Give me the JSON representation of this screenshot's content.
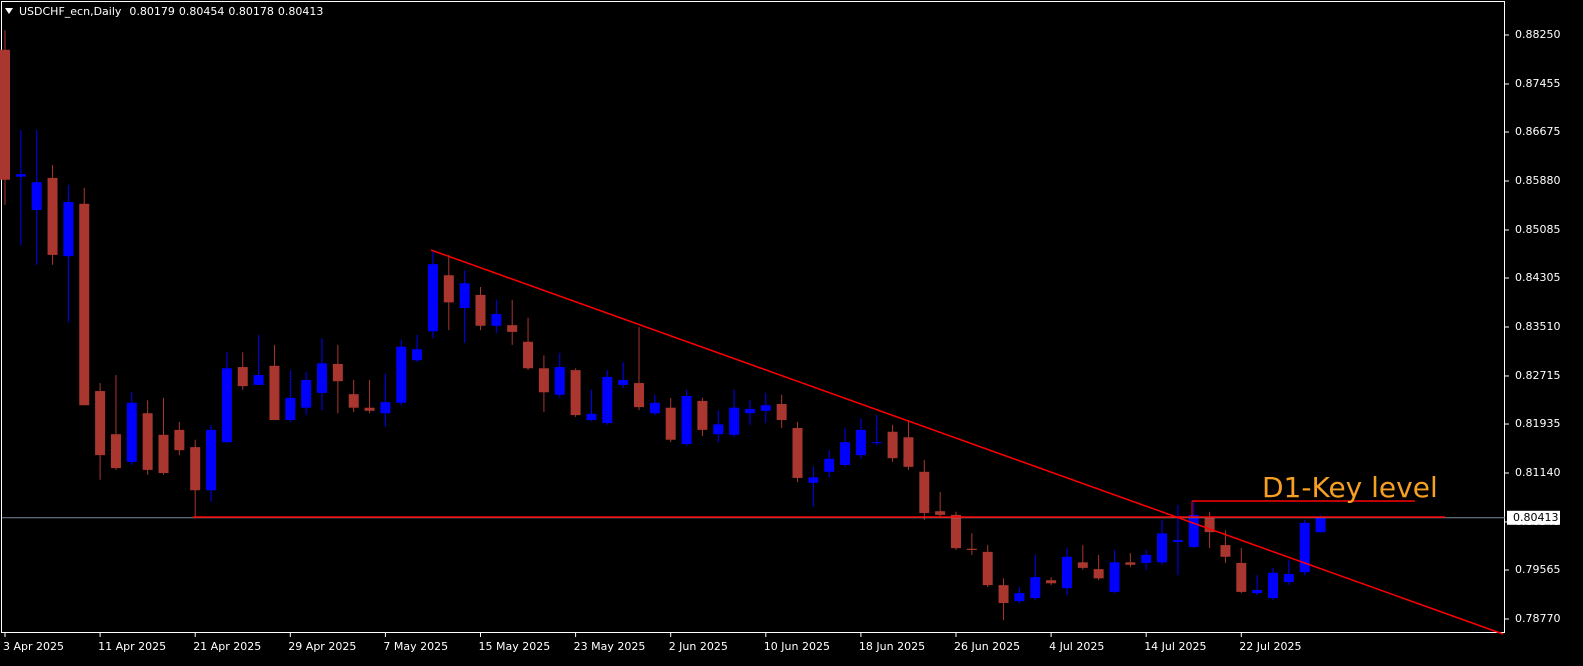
{
  "chart_data": {
    "type": "candlestick",
    "title": "USDCHF_ecn,Daily",
    "up_color": "#0000ff",
    "down_color": "#a9372f",
    "ylim": [
      0.78559,
      0.88818
    ],
    "yticks": [
      {
        "value": 0.8825,
        "label": "0.88250"
      },
      {
        "value": 0.87455,
        "label": "0.87455"
      },
      {
        "value": 0.86675,
        "label": "0.86675"
      },
      {
        "value": 0.8588,
        "label": "0.85880"
      },
      {
        "value": 0.85085,
        "label": "0.85085"
      },
      {
        "value": 0.84305,
        "label": "0.84305"
      },
      {
        "value": 0.8351,
        "label": "0.83510"
      },
      {
        "value": 0.82715,
        "label": "0.82715"
      },
      {
        "value": 0.81935,
        "label": "0.81935"
      },
      {
        "value": 0.8114,
        "label": "0.81140"
      },
      {
        "value": 0.80345,
        "label": "0.80345"
      },
      {
        "value": 0.79565,
        "label": "0.79565"
      },
      {
        "value": 0.7877,
        "label": "0.78770"
      }
    ],
    "categories": [
      "3 Apr 2025",
      null,
      null,
      null,
      null,
      null,
      "11 Apr 2025",
      null,
      null,
      null,
      null,
      null,
      "21 Apr 2025",
      null,
      null,
      null,
      null,
      null,
      "29 Apr 2025",
      null,
      null,
      null,
      null,
      null,
      "7 May 2025",
      null,
      null,
      null,
      null,
      null,
      "15 May 2025",
      null,
      null,
      null,
      null,
      null,
      "23 May 2025",
      null,
      null,
      null,
      null,
      null,
      "2 Jun 2025",
      null,
      null,
      null,
      null,
      null,
      "10 Jun 2025",
      null,
      null,
      null,
      null,
      null,
      "18 Jun 2025",
      null,
      null,
      null,
      null,
      null,
      "26 Jun 2025",
      null,
      null,
      null,
      null,
      null,
      "4 Jul 2025",
      null,
      null,
      null,
      null,
      null,
      "14 Jul 2025",
      null,
      null,
      null,
      null,
      null,
      "22 Jul 2025",
      null,
      null,
      null,
      null,
      null
    ],
    "open": [
      0.8801,
      0.8595,
      0.8541,
      0.8593,
      0.8466,
      0.8551,
      0.8247,
      0.8177,
      0.8132,
      0.8211,
      0.8176,
      0.8184,
      0.8156,
      0.8086,
      0.8164,
      0.8286,
      0.8257,
      0.8288,
      0.82,
      0.822,
      0.8244,
      0.8291,
      0.8242,
      0.822,
      0.8211,
      0.8228,
      0.8297,
      0.8344,
      0.8435,
      0.8382,
      0.8403,
      0.8353,
      0.8354,
      0.8327,
      0.8284,
      0.8241,
      0.8281,
      0.82,
      0.8195,
      0.8257,
      0.826,
      0.8211,
      0.822,
      0.8161,
      0.8231,
      0.8177,
      0.8176,
      0.8211,
      0.8215,
      0.8226,
      0.8187,
      0.8098,
      0.8116,
      0.8127,
      0.8143,
      0.8163,
      0.8181,
      0.8172,
      0.8116,
      0.8052,
      0.8046,
      0.7991,
      0.7986,
      0.7932,
      0.7906,
      0.7911,
      0.794,
      0.7927,
      0.7969,
      0.7958,
      0.7921,
      0.7969,
      0.7968,
      0.7969,
      0.8002,
      0.7994,
      0.8043,
      0.7997,
      0.7968,
      0.7919,
      0.7911,
      0.7937,
      0.7953,
      0.80179
    ],
    "high": [
      0.8833,
      0.8671,
      0.8671,
      0.8614,
      0.8582,
      0.8577,
      0.826,
      0.8273,
      0.8245,
      0.8232,
      0.8236,
      0.8197,
      0.8168,
      0.8192,
      0.831,
      0.831,
      0.8338,
      0.8322,
      0.8281,
      0.8278,
      0.8333,
      0.8322,
      0.8265,
      0.8265,
      0.8275,
      0.833,
      0.8338,
      0.8473,
      0.8468,
      0.8443,
      0.8416,
      0.8395,
      0.8395,
      0.8366,
      0.8305,
      0.8309,
      0.8284,
      0.8249,
      0.8281,
      0.8294,
      0.8351,
      0.8241,
      0.8236,
      0.8249,
      0.8236,
      0.8216,
      0.8249,
      0.8232,
      0.8244,
      0.8241,
      0.8197,
      0.8125,
      0.8151,
      0.8187,
      0.8203,
      0.8208,
      0.8192,
      0.82,
      0.8135,
      0.8083,
      0.8051,
      0.8016,
      0.7997,
      0.7943,
      0.7929,
      0.7981,
      0.7945,
      0.7992,
      0.7997,
      0.7981,
      0.7989,
      0.7984,
      0.7989,
      0.8038,
      0.8062,
      0.807,
      0.8051,
      0.8021,
      0.7992,
      0.7948,
      0.796,
      0.7973,
      0.8038,
      0.80454
    ],
    "low": [
      0.8549,
      0.8484,
      0.8452,
      0.8452,
      0.8359,
      0.8224,
      0.8103,
      0.8119,
      0.8127,
      0.8111,
      0.8111,
      0.8143,
      0.8043,
      0.8067,
      0.8163,
      0.8249,
      0.8257,
      0.82,
      0.8197,
      0.8208,
      0.8216,
      0.8211,
      0.8213,
      0.8211,
      0.8189,
      0.8224,
      0.8294,
      0.8333,
      0.8346,
      0.8325,
      0.8346,
      0.8341,
      0.8322,
      0.8281,
      0.8213,
      0.8236,
      0.8205,
      0.8198,
      0.8192,
      0.8252,
      0.8216,
      0.8208,
      0.8164,
      0.8158,
      0.8174,
      0.8164,
      0.8172,
      0.8192,
      0.8195,
      0.8187,
      0.8099,
      0.8059,
      0.8107,
      0.8124,
      0.8138,
      0.8159,
      0.8132,
      0.8119,
      0.8038,
      0.8041,
      0.7989,
      0.7981,
      0.7929,
      0.7875,
      0.7903,
      0.7908,
      0.7932,
      0.7916,
      0.7957,
      0.794,
      0.7919,
      0.7961,
      0.7957,
      0.7965,
      0.7948,
      0.7992,
      0.7992,
      0.7968,
      0.7919,
      0.7916,
      0.7908,
      0.7932,
      0.7948,
      0.80178
    ],
    "close": [
      0.859,
      0.8599,
      0.8586,
      0.8468,
      0.8554,
      0.8224,
      0.8143,
      0.8122,
      0.8228,
      0.8119,
      0.8114,
      0.8151,
      0.8086,
      0.8184,
      0.8284,
      0.8255,
      0.8273,
      0.82,
      0.8236,
      0.8265,
      0.8292,
      0.8263,
      0.822,
      0.8215,
      0.8229,
      0.8319,
      0.8315,
      0.8453,
      0.8391,
      0.8422,
      0.8353,
      0.8372,
      0.8343,
      0.8284,
      0.8245,
      0.8286,
      0.8208,
      0.821,
      0.827,
      0.8265,
      0.8221,
      0.8228,
      0.8168,
      0.8239,
      0.8184,
      0.8193,
      0.822,
      0.8218,
      0.8224,
      0.82,
      0.8106,
      0.8107,
      0.8137,
      0.8164,
      0.8184,
      0.8164,
      0.8138,
      0.8124,
      0.8049,
      0.8046,
      0.7992,
      0.7989,
      0.7932,
      0.7903,
      0.7919,
      0.7945,
      0.7935,
      0.7978,
      0.796,
      0.7943,
      0.7969,
      0.7965,
      0.7981,
      0.8016,
      0.8005,
      0.8046,
      0.8018,
      0.7978,
      0.7921,
      0.7924,
      0.7952,
      0.795,
      0.8033,
      0.80413
    ],
    "annotations": [
      {
        "text": "D1-Key level",
        "color": "#f5a023"
      }
    ]
  }
}
